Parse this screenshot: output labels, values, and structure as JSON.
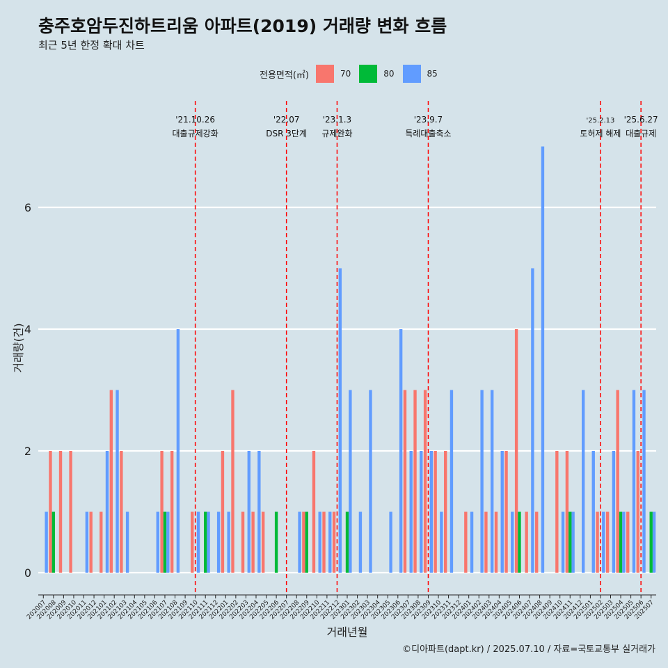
{
  "title": "충주호암두진하트리움 아파트(2019) 거래량 변화 흐름",
  "subtitle": "최근 5년 한정 확대 차트",
  "footer": "©디아파트(dapt.kr) / 2025.07.10 / 자료=국토교통부 실거래가",
  "legend": {
    "title": "전용면적(㎡)",
    "items": [
      {
        "label": "70",
        "color": "#f8766d"
      },
      {
        "label": "80",
        "color": "#00ba38"
      },
      {
        "label": "85",
        "color": "#619cff"
      }
    ]
  },
  "chart_data": {
    "type": "bar",
    "xlabel": "거래년월",
    "ylabel": "거래량(건)",
    "ylim": [
      0,
      7
    ],
    "yticks": [
      0,
      2,
      4,
      6
    ],
    "grid": true,
    "legend_position": "top",
    "categories": [
      "202007",
      "202008",
      "202009",
      "202010",
      "202011",
      "202012",
      "202101",
      "202102",
      "202103",
      "202104",
      "202105",
      "202106",
      "202107",
      "202108",
      "202109",
      "202110",
      "202111",
      "202112",
      "202201",
      "202202",
      "202203",
      "202204",
      "202205",
      "202206",
      "202207",
      "202208",
      "202209",
      "202210",
      "202211",
      "202212",
      "202301",
      "202302",
      "202303",
      "202304",
      "202305",
      "202306",
      "202307",
      "202308",
      "202309",
      "202310",
      "202311",
      "202312",
      "202401",
      "202402",
      "202403",
      "202404",
      "202405",
      "202406",
      "202407",
      "202408",
      "202409",
      "202410",
      "202411",
      "202412",
      "202501",
      "202502",
      "202503",
      "202504",
      "202505",
      "202506",
      "202507"
    ],
    "series": [
      {
        "name": "70",
        "color": "#f8766d",
        "values": [
          0,
          2,
          2,
          2,
          0,
          1,
          1,
          3,
          2,
          0,
          0,
          0,
          2,
          2,
          0,
          1,
          0,
          0,
          2,
          3,
          1,
          1,
          1,
          0,
          0,
          0,
          1,
          2,
          1,
          1,
          0,
          0,
          0,
          0,
          0,
          0,
          3,
          3,
          3,
          2,
          2,
          0,
          1,
          0,
          1,
          1,
          2,
          4,
          1,
          1,
          0,
          2,
          2,
          0,
          0,
          1,
          1,
          3,
          1,
          2,
          0
        ]
      },
      {
        "name": "80",
        "color": "#00ba38",
        "values": [
          0,
          1,
          0,
          0,
          0,
          0,
          0,
          0,
          0,
          0,
          0,
          0,
          1,
          0,
          0,
          0,
          1,
          0,
          0,
          0,
          0,
          0,
          0,
          1,
          0,
          0,
          1,
          0,
          0,
          0,
          1,
          0,
          0,
          0,
          0,
          0,
          0,
          0,
          0,
          0,
          0,
          0,
          0,
          0,
          0,
          0,
          0,
          1,
          0,
          0,
          0,
          0,
          1,
          0,
          0,
          0,
          0,
          1,
          0,
          0,
          1
        ]
      },
      {
        "name": "85",
        "color": "#619cff",
        "values": [
          1,
          0,
          0,
          0,
          1,
          0,
          2,
          3,
          1,
          0,
          0,
          1,
          1,
          4,
          0,
          1,
          1,
          1,
          1,
          0,
          2,
          2,
          0,
          0,
          0,
          1,
          0,
          1,
          1,
          5,
          3,
          1,
          3,
          0,
          1,
          4,
          2,
          2,
          2,
          1,
          3,
          0,
          1,
          3,
          3,
          2,
          1,
          0,
          5,
          7,
          0,
          1,
          1,
          3,
          2,
          1,
          2,
          1,
          3,
          3,
          1
        ]
      }
    ],
    "annotations": [
      {
        "x": "202110",
        "date": "'21.10.26",
        "label": "대출규제강화"
      },
      {
        "x": "202207",
        "date": "'22.07",
        "label": "DSR 3단계"
      },
      {
        "x": "202212",
        "date": "'23.1.3",
        "label": "규제완화"
      },
      {
        "x": "202309",
        "date": "'23.9.7",
        "label": "특례대출축소"
      },
      {
        "x": "202502",
        "date": "'25.2.13",
        "label": "토허제 해제"
      },
      {
        "x": "202506",
        "date": "'25.6.27",
        "label": "대출규제"
      }
    ]
  }
}
